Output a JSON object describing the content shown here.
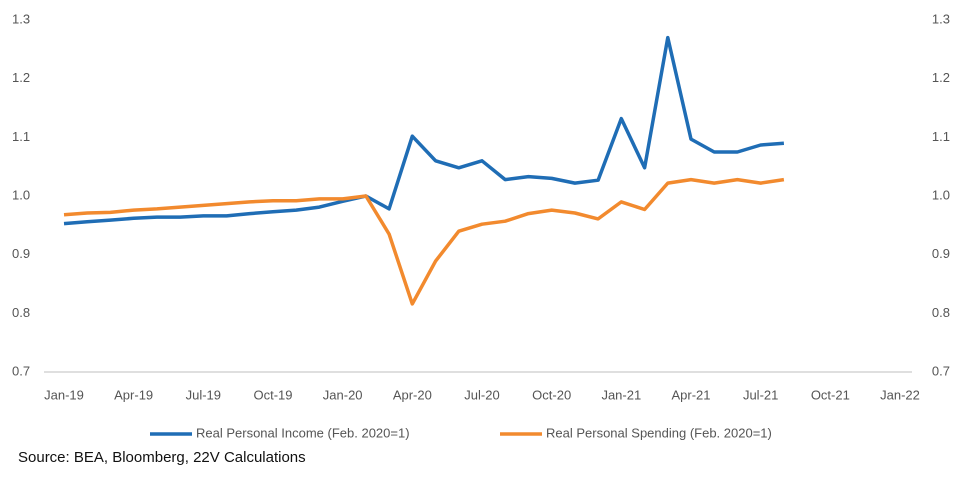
{
  "chart_data": {
    "type": "line",
    "categories": [
      "Jan-19",
      null,
      null,
      "Apr-19",
      null,
      null,
      "Jul-19",
      null,
      null,
      "Oct-19",
      null,
      null,
      "Jan-20",
      null,
      null,
      "Apr-20",
      null,
      null,
      "Jul-20",
      null,
      null,
      "Oct-20",
      null,
      null,
      "Jan-21",
      null,
      null,
      "Apr-21",
      null,
      null,
      "Jul-21",
      null,
      null,
      "Oct-21",
      null,
      null,
      "Jan-22"
    ],
    "series": [
      {
        "name": "Real Personal Income (Feb. 2020=1)",
        "color": "#1f6db5",
        "values": [
          0.953,
          0.956,
          0.959,
          0.962,
          0.964,
          0.964,
          0.966,
          0.966,
          0.97,
          0.973,
          0.976,
          0.981,
          0.991,
          1.0,
          0.978,
          1.102,
          1.06,
          1.048,
          1.06,
          1.028,
          1.033,
          1.03,
          1.022,
          1.027,
          1.132,
          1.048,
          1.27,
          1.097,
          1.075,
          1.075,
          1.087,
          1.09,
          null,
          null,
          null,
          null,
          null
        ]
      },
      {
        "name": "Real Personal Spending (Feb. 2020=1)",
        "color": "#f28a2e",
        "values": [
          0.968,
          0.971,
          0.972,
          0.976,
          0.978,
          0.981,
          0.984,
          0.987,
          0.99,
          0.992,
          0.992,
          0.995,
          0.995,
          1.0,
          0.935,
          0.816,
          0.889,
          0.94,
          0.952,
          0.957,
          0.97,
          0.976,
          0.971,
          0.961,
          0.99,
          0.977,
          1.022,
          1.028,
          1.022,
          1.028,
          1.022,
          1.028,
          null,
          null,
          null,
          null,
          null
        ]
      }
    ],
    "ylim": [
      0.7,
      1.3
    ],
    "yticks": [
      0.7,
      0.8,
      0.9,
      {
        "value": 1,
        "label": "1.0"
      },
      1.1,
      1.2,
      1.3
    ],
    "y2lim": [
      0.7,
      1.3
    ],
    "y2ticks": [
      0.7,
      0.8,
      0.9,
      {
        "value": 1,
        "label": "1.0"
      },
      1.1,
      1.2,
      1.3
    ],
    "grid": false,
    "legend": "bottom",
    "source": "Source: BEA, Bloomberg, 22V Calculations"
  }
}
